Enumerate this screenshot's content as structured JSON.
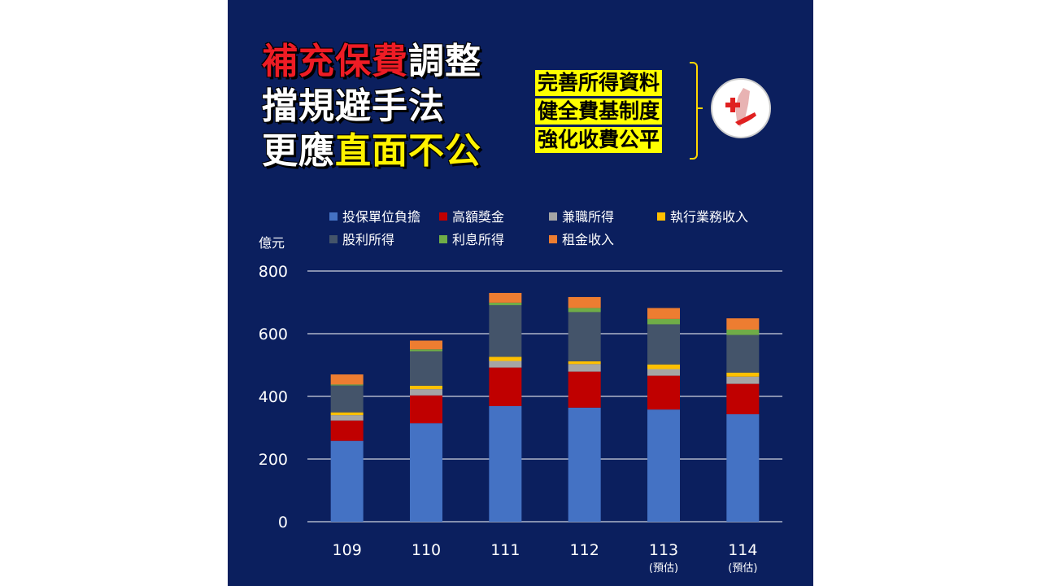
{
  "headline": {
    "line1": [
      {
        "text": "補充保費",
        "color": "red"
      },
      {
        "text": "調整",
        "color": "white"
      }
    ],
    "line2": [
      {
        "text": "擋規避手法",
        "color": "white"
      }
    ],
    "line3": [
      {
        "text": "更應",
        "color": "white"
      },
      {
        "text": "直面不公",
        "color": "yellow"
      }
    ]
  },
  "goals": [
    "完善所得資料",
    "健全費基制度",
    "強化收費公平"
  ],
  "logo": {
    "name": "nhi-logo-icon"
  },
  "chart_data": {
    "type": "bar",
    "stacked": true,
    "unit_label": "億元",
    "categories": [
      "109",
      "110",
      "111",
      "112",
      "113",
      "114"
    ],
    "category_notes": [
      "",
      "",
      "",
      "",
      "(預估)",
      "(預估)"
    ],
    "ylim": [
      0,
      800
    ],
    "yticks": [
      0,
      200,
      400,
      600,
      800
    ],
    "grid": true,
    "legend_position": "top",
    "series": [
      {
        "name": "投保單位負擔",
        "color": "#4472c4",
        "values": [
          258,
          314,
          369,
          364,
          358,
          343
        ]
      },
      {
        "name": "高額獎金",
        "color": "#c00000",
        "values": [
          65,
          89,
          123,
          115,
          108,
          97
        ]
      },
      {
        "name": "兼職所得",
        "color": "#a5a5a5",
        "values": [
          17,
          20,
          21,
          24,
          21,
          23
        ]
      },
      {
        "name": "執行業務收入",
        "color": "#ffc000",
        "values": [
          9,
          11,
          13,
          9,
          15,
          13
        ]
      },
      {
        "name": "股利所得",
        "color": "#44546a",
        "values": [
          86,
          110,
          165,
          157,
          128,
          120
        ]
      },
      {
        "name": "利息所得",
        "color": "#70ad47",
        "values": [
          3,
          6,
          8,
          13,
          17,
          17
        ]
      },
      {
        "name": "租金收入",
        "color": "#ed7d31",
        "values": [
          32,
          28,
          31,
          35,
          35,
          36
        ]
      }
    ]
  }
}
